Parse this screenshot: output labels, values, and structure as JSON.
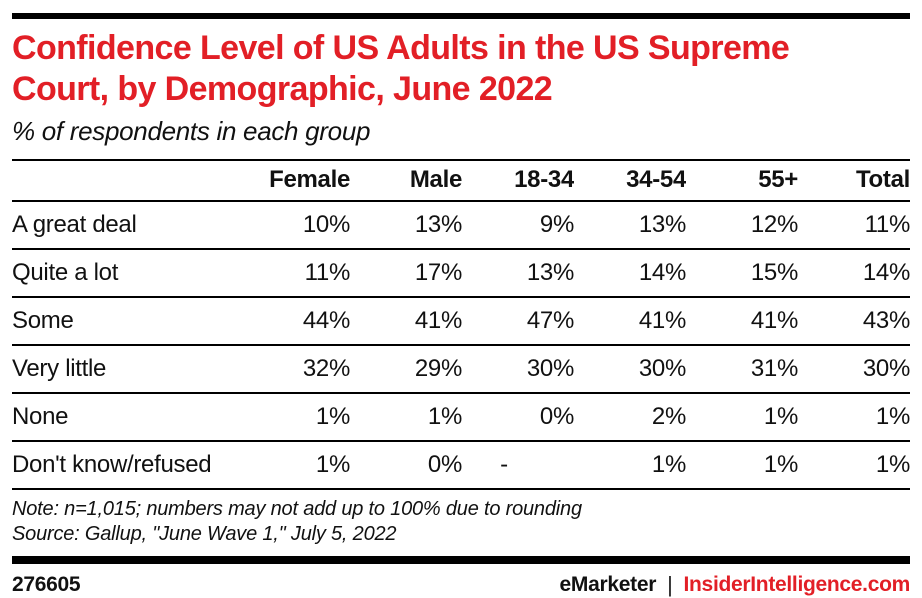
{
  "colors": {
    "accent_red": "#e21f26",
    "bar_black": "#000000",
    "text": "#111111",
    "background": "#ffffff"
  },
  "chart_data": {
    "type": "table",
    "title": "Confidence Level of US Adults in the US Supreme Court, by Demographic, June 2022",
    "subtitle": "% of respondents in each group",
    "columns": [
      "",
      "Female",
      "Male",
      "18-34",
      "34-54",
      "55+",
      "Total"
    ],
    "rows": [
      {
        "label": "A great deal",
        "values": [
          "10%",
          "13%",
          "9%",
          "13%",
          "12%",
          "11%"
        ]
      },
      {
        "label": "Quite a lot",
        "values": [
          "11%",
          "17%",
          "13%",
          "14%",
          "15%",
          "14%"
        ]
      },
      {
        "label": "Some",
        "values": [
          "44%",
          "41%",
          "47%",
          "41%",
          "41%",
          "43%"
        ]
      },
      {
        "label": "Very little",
        "values": [
          "32%",
          "29%",
          "30%",
          "30%",
          "31%",
          "30%"
        ]
      },
      {
        "label": "None",
        "values": [
          "1%",
          "1%",
          "0%",
          "2%",
          "1%",
          "1%"
        ]
      },
      {
        "label": "Don't know/refused",
        "values": [
          "1%",
          "0%",
          "-",
          "1%",
          "1%",
          "1%"
        ]
      }
    ],
    "note": "Note: n=1,015; numbers may not add up to 100% due to rounding",
    "source": "Source: Gallup, \"June Wave 1,\" July 5, 2022",
    "legend_position": "none",
    "grid": "horizontal-rules"
  },
  "footer": {
    "chart_id": "276605",
    "brand_primary": "eMarketer",
    "divider": "|",
    "brand_secondary": "InsiderIntelligence.com"
  }
}
